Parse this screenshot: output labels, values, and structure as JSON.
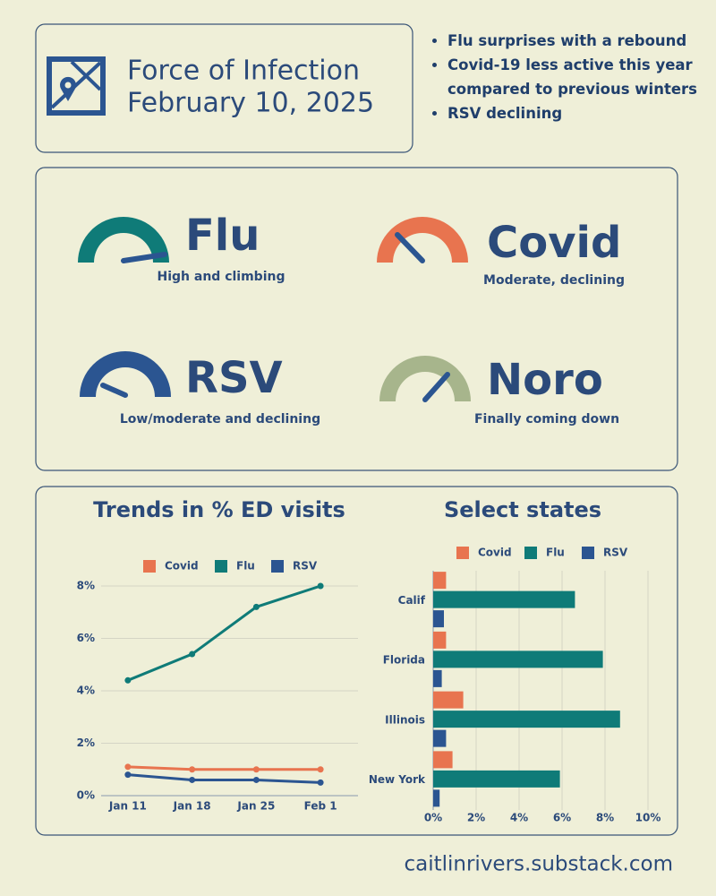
{
  "header": {
    "title": "Force of Infection",
    "date": "February 10, 2025"
  },
  "highlights": [
    "Flu surprises with a rebound",
    "Covid-19 less active this year compared to previous winters",
    "RSV declining"
  ],
  "gauges": [
    {
      "name": "Flu",
      "status": "High and climbing"
    },
    {
      "name": "Covid",
      "status": "Moderate, declining"
    },
    {
      "name": "RSV",
      "status": "Low/moderate and declining"
    },
    {
      "name": "Noro",
      "status": "Finally coming down"
    }
  ],
  "chart_data": [
    {
      "type": "line",
      "title": "Trends in % ED visits",
      "categories": [
        "Jan 11",
        "Jan 18",
        "Jan 25",
        "Feb 1"
      ],
      "series": [
        {
          "name": "Covid",
          "color": "#e8744f",
          "values": [
            1.1,
            1.0,
            1.0,
            1.0
          ]
        },
        {
          "name": "Flu",
          "color": "#0f7b78",
          "values": [
            4.4,
            5.4,
            7.2,
            8.0
          ]
        },
        {
          "name": "RSV",
          "color": "#2b5591",
          "values": [
            0.8,
            0.6,
            0.6,
            0.5
          ]
        }
      ],
      "ylim": [
        0,
        8
      ],
      "yticks": [
        {
          "value": 0,
          "label": "0%"
        },
        {
          "value": 2,
          "label": "2%"
        },
        {
          "value": 4,
          "label": "4%"
        },
        {
          "value": 6,
          "label": "6%"
        },
        {
          "value": 8,
          "label": "8%"
        }
      ],
      "grid": true,
      "legend": "top"
    },
    {
      "type": "hbar",
      "title": "Select states",
      "categories": [
        "Calif",
        "Florida",
        "Illinois",
        "New York"
      ],
      "series": [
        {
          "name": "Covid",
          "color": "#e8744f",
          "values": [
            0.6,
            0.6,
            1.4,
            0.9
          ]
        },
        {
          "name": "Flu",
          "color": "#0f7b78",
          "values": [
            6.6,
            7.9,
            8.7,
            5.9
          ]
        },
        {
          "name": "RSV",
          "color": "#2b5591",
          "values": [
            0.5,
            0.4,
            0.6,
            0.3
          ]
        }
      ],
      "xlim": [
        0,
        10
      ],
      "xticks": [
        {
          "value": 0,
          "label": "0%"
        },
        {
          "value": 2,
          "label": "2%"
        },
        {
          "value": 4,
          "label": "4%"
        },
        {
          "value": 6,
          "label": "6%"
        },
        {
          "value": 8,
          "label": "8%"
        },
        {
          "value": 10,
          "label": "10%"
        }
      ],
      "grid": true,
      "legend": "top"
    }
  ],
  "footer": "caitlinrivers.substack.com"
}
